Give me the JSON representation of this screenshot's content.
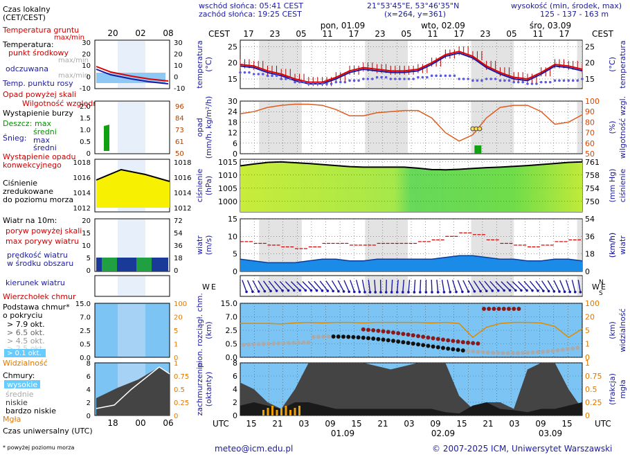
{
  "header": {
    "sunrise": "wschód słońca: 05:41 CEST",
    "sunset": "zachód słońca: 19:25 CEST",
    "coords": "21°53'45\"E, 53°46'35\"N",
    "grid": "(x=264, y=361)",
    "height_title": "wysokość (min, środek, max)",
    "height_values": "125 - 137 - 163 m"
  },
  "legend": {
    "local_time": "Czas lokalny",
    "local_time2": "(CET/CEST)",
    "ground_temp": "Temperatura gruntu",
    "ground_temp2": "max/min",
    "temperature": "Temperatura:",
    "mid_point": "punkt środkowy",
    "max_min": "max/min",
    "perceived": "odczuwana",
    "max_min2": "max/min",
    "dew": "Temp. punktu rosy",
    "precip_above": "Opad powyżej skali",
    "humidity": "Wilgotność względna",
    "storm": "Wystąpienie burzy",
    "rain": "Deszcz:",
    "max": "max",
    "avg": "średni",
    "snow": "Śnieg:",
    "snow_max": "max",
    "snow_avg": "średni",
    "conv": "Wystąpienie opadu",
    "conv2": "konwekcyjnego",
    "pressure": "Ciśnienie",
    "pressure2": "zredukowane",
    "pressure3": "do poziomu morza",
    "wind10": "Wiatr na 10m:",
    "gust_above": "poryw powyżej skali",
    "max_gust": "max porywy wiatru",
    "wind_speed": "prędkość wiatru",
    "wind_speed2": "w środku obszaru",
    "wind_dir": "kierunek wiatru",
    "cloud_top": "Wierzchołek chmur",
    "cloud_base": "Podstawa chmur*",
    "cloud_base2": "o pokryciu",
    "okt79": "> 7.9 okt.",
    "okt65": "> 6.5 okt.",
    "okt45": "> 4.5 okt.",
    "okt25": "> 2.5 okt.",
    "okt01": "> 0.1 okt.",
    "visibility": "Widzialność",
    "clouds": "Chmury:",
    "high": "wysokie",
    "mid": "średnie",
    "low": "niskie",
    "very_low": "bardzo niskie",
    "fog": "Mgła",
    "utc_time": "Czas uniwersalny (UTC)",
    "footnote": "* powyżej poziomu morza"
  },
  "footer": {
    "email": "meteo@icm.edu.pl",
    "copyright": "© 2007-2025 ICM, Uniwersytet Warszawski"
  },
  "top_axis": {
    "label_left": "CEST",
    "label_right": "CEST",
    "hours": [
      "17",
      "23",
      "05",
      "11",
      "17",
      "23",
      "05",
      "11",
      "17",
      "23",
      "05",
      "11",
      "17"
    ],
    "days": [
      "pon, 01.09",
      "wto, 02.09",
      "śro, 03.09"
    ]
  },
  "bottom_axis": {
    "label_left": "UTC",
    "label_right": "UTC",
    "hours": [
      "15",
      "21",
      "03",
      "09",
      "15",
      "21",
      "03",
      "09",
      "15",
      "21",
      "03",
      "09",
      "15"
    ],
    "dates": [
      "01.09",
      "02.09",
      "03.09"
    ]
  },
  "mini_axis": {
    "top": [
      "20",
      "02",
      "08"
    ],
    "bottom": [
      "18",
      "00",
      "06"
    ]
  },
  "panels": {
    "temperature": {
      "ylabel": "temperatura",
      "unit": "(°C)",
      "ticks": [
        "25",
        "20",
        "15"
      ],
      "mini_ticks": [
        "30",
        "20",
        "10",
        "0",
        "-10"
      ]
    },
    "precip": {
      "ylabel": "opad",
      "unit": "(mm/h, kg/m²/h)",
      "ticks": [
        "30",
        "24",
        "18",
        "12",
        "6",
        "0"
      ],
      "right_label": "wilgotność wzgl.",
      "right_unit": "(%)",
      "right_ticks": [
        "100",
        "90",
        "80",
        "70",
        "60",
        "50"
      ],
      "mini_left": [
        "2.0",
        "1.5",
        "1.0",
        "0.5",
        "0"
      ],
      "mini_right": [
        "96",
        "84",
        "73",
        "61",
        "50"
      ]
    },
    "pressure": {
      "ylabel": "ciśnienie",
      "unit": "(hPa)",
      "ticks": [
        "1015",
        "1010",
        "1005",
        "1000"
      ],
      "right_label": "ciśnienie",
      "right_unit": "(mm Hg)",
      "right_ticks": [
        "761",
        "758",
        "754",
        "750"
      ],
      "mini_left": [
        "1018",
        "1016",
        "1014",
        "1012"
      ],
      "mini_right": [
        "1018",
        "1016",
        "1014",
        "1012"
      ]
    },
    "wind": {
      "ylabel": "wiatr",
      "unit": "(m/s)",
      "ticks": [
        "15",
        "10",
        "5",
        "0"
      ],
      "right_label": "wiatr",
      "right_unit": "(km/h)",
      "right_ticks": [
        "54",
        "36",
        "18",
        "0"
      ],
      "mini_left": [
        "20",
        "15",
        "10",
        "5",
        "0"
      ],
      "mini_right": [
        "72",
        "54",
        "36",
        "18",
        "0"
      ]
    },
    "cloud": {
      "ylabel": "pion. rozciągł. chm.",
      "unit": "(km)",
      "ticks": [
        "15.0",
        "7.0",
        "2.5",
        "0.5",
        "0.0"
      ],
      "right_label": "widzialność",
      "right_unit": "(km)",
      "right_ticks": [
        "100",
        "20",
        "5",
        "1",
        "0"
      ]
    },
    "cover": {
      "ylabel": "zachmurzenie",
      "unit": "(oktanty)",
      "ticks": [
        "8",
        "6",
        "4",
        "2",
        "0"
      ],
      "right_label": "mgła",
      "right_unit": "(frakcja)",
      "right_ticks": [
        "1",
        "0.75",
        "0.5",
        "0.25",
        "0"
      ]
    }
  },
  "chart_data": {
    "type": "line",
    "x_hours_utc": [
      15,
      18,
      21,
      0,
      3,
      6,
      9,
      12,
      15,
      18,
      21,
      0,
      3,
      6,
      9,
      12,
      15,
      18,
      21,
      0,
      3,
      6,
      9,
      12,
      15,
      18
    ],
    "series": [
      {
        "name": "punkt środkowy",
        "values": [
          19.5,
          19,
          17.5,
          16.5,
          15,
          14,
          14,
          15.5,
          17.5,
          18.5,
          18,
          17.5,
          17.5,
          18,
          20,
          22.5,
          23.5,
          22,
          19,
          17,
          15.5,
          15,
          17,
          19.5,
          19,
          18
        ]
      },
      {
        "name": "odczuwana",
        "values": [
          19,
          18.5,
          17,
          16,
          14.5,
          13.5,
          13.5,
          15,
          17,
          18,
          17.5,
          17,
          17,
          17.5,
          19.5,
          22,
          23,
          21.5,
          18.5,
          16.5,
          15,
          14.5,
          16.5,
          19,
          18.5,
          17.5
        ]
      },
      {
        "name": "Temp. punktu rosy",
        "values": [
          17,
          16.5,
          16,
          15,
          14,
          13.5,
          13.5,
          14,
          14.5,
          15,
          15.5,
          15,
          15,
          15.5,
          16,
          16,
          15,
          14.5,
          15,
          14.5,
          14,
          13.5,
          14,
          14.5,
          14.5,
          15
        ]
      },
      {
        "name": "Wilgotność względna",
        "values": [
          88,
          90,
          94,
          96,
          97,
          97,
          96,
          92,
          86,
          86,
          89,
          90,
          91,
          91,
          84,
          70,
          62,
          68,
          84,
          94,
          96,
          96,
          90,
          78,
          80,
          87
        ]
      },
      {
        "name": "Ciśnienie",
        "values": [
          1013.5,
          1014.2,
          1014.8,
          1015.0,
          1014.7,
          1014.4,
          1014.0,
          1013.6,
          1013.2,
          1013.0,
          1013.0,
          1013.0,
          1013.0,
          1012.6,
          1012.1,
          1012.0,
          1012.2,
          1012.5,
          1012.8,
          1013.0,
          1013.3,
          1013.6,
          1014.0,
          1014.4,
          1014.8,
          1015.0
        ]
      },
      {
        "name": "prędkość wiatru",
        "values": [
          3.5,
          3,
          2.5,
          2.5,
          2.5,
          3,
          3.5,
          3.5,
          3,
          3,
          3.5,
          3.5,
          3.5,
          3.5,
          3.5,
          4,
          4.5,
          4.5,
          4,
          3.5,
          3.5,
          3,
          3,
          3.5,
          3.5,
          3
        ]
      },
      {
        "name": "max porywy wiatru",
        "values": [
          8.5,
          8,
          7.5,
          7,
          6.5,
          7,
          8,
          8,
          7.5,
          7.5,
          8,
          8,
          8,
          8.5,
          9,
          10,
          11,
          10.5,
          9,
          8,
          7.5,
          7,
          7.5,
          8.5,
          9,
          8
        ]
      }
    ],
    "precip_rain": {
      "x_hours_utc": [
        18,
        21
      ],
      "values": [
        0,
        0
      ]
    },
    "ylim_temperature": [
      12,
      27
    ],
    "ylim_pressure": [
      996,
      1016
    ],
    "ylim_wind": [
      0,
      15
    ],
    "ylim_humidity": [
      50,
      100
    ]
  }
}
